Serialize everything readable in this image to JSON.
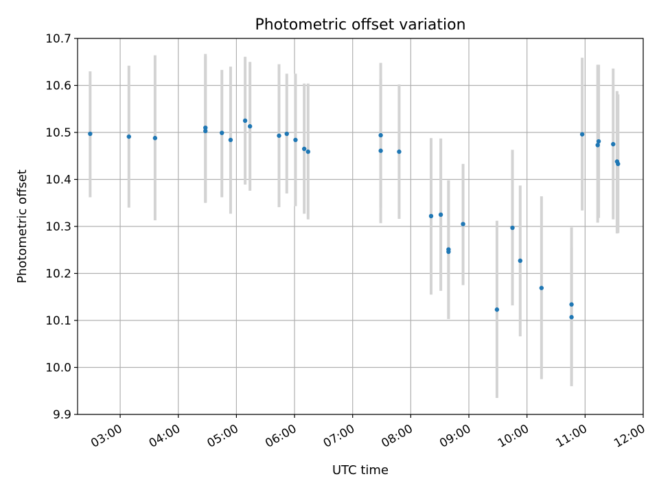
{
  "chart_data": {
    "type": "scatter",
    "title": "Photometric offset variation",
    "xlabel": "UTC time",
    "ylabel": "Photometric offset",
    "xlim": [
      "02:16",
      "12:00"
    ],
    "ylim": [
      9.9,
      10.7
    ],
    "x_ticks": [
      "03:00",
      "04:00",
      "05:00",
      "06:00",
      "07:00",
      "08:00",
      "09:00",
      "10:00",
      "11:00",
      "12:00"
    ],
    "y_ticks": [
      "9.9",
      "10.0",
      "10.1",
      "10.2",
      "10.3",
      "10.4",
      "10.5",
      "10.6",
      "10.7"
    ],
    "grid": true,
    "point_color": "#1f77b4",
    "errorbar_color": "#d3d3d3",
    "points": [
      {
        "x": "02:29",
        "y": 10.497,
        "err_low": 10.362,
        "err_high": 10.63
      },
      {
        "x": "03:09",
        "y": 10.491,
        "err_low": 10.34,
        "err_high": 10.642
      },
      {
        "x": "03:36",
        "y": 10.488,
        "err_low": 10.313,
        "err_high": 10.664
      },
      {
        "x": "04:28",
        "y": 10.51,
        "err_low": 10.35,
        "err_high": 10.667
      },
      {
        "x": "04:28",
        "y": 10.503,
        "err_low": 10.352,
        "err_high": 10.662
      },
      {
        "x": "04:45",
        "y": 10.499,
        "err_low": 10.362,
        "err_high": 10.633
      },
      {
        "x": "04:54",
        "y": 10.484,
        "err_low": 10.327,
        "err_high": 10.64
      },
      {
        "x": "05:09",
        "y": 10.525,
        "err_low": 10.389,
        "err_high": 10.661
      },
      {
        "x": "05:14",
        "y": 10.513,
        "err_low": 10.376,
        "err_high": 10.65
      },
      {
        "x": "05:44",
        "y": 10.493,
        "err_low": 10.341,
        "err_high": 10.645
      },
      {
        "x": "05:52",
        "y": 10.497,
        "err_low": 10.37,
        "err_high": 10.625
      },
      {
        "x": "06:01",
        "y": 10.484,
        "err_low": 10.343,
        "err_high": 10.625
      },
      {
        "x": "06:10",
        "y": 10.465,
        "err_low": 10.327,
        "err_high": 10.604
      },
      {
        "x": "06:14",
        "y": 10.459,
        "err_low": 10.315,
        "err_high": 10.604
      },
      {
        "x": "07:29",
        "y": 10.494,
        "err_low": 10.34,
        "err_high": 10.648
      },
      {
        "x": "07:29",
        "y": 10.461,
        "err_low": 10.307,
        "err_high": 10.614
      },
      {
        "x": "07:48",
        "y": 10.459,
        "err_low": 10.316,
        "err_high": 10.602
      },
      {
        "x": "08:21",
        "y": 10.322,
        "err_low": 10.155,
        "err_high": 10.488
      },
      {
        "x": "08:31",
        "y": 10.325,
        "err_low": 10.163,
        "err_high": 10.487
      },
      {
        "x": "08:39",
        "y": 10.251,
        "err_low": 10.103,
        "err_high": 10.398
      },
      {
        "x": "08:39",
        "y": 10.246,
        "err_low": 10.103,
        "err_high": 10.398
      },
      {
        "x": "08:54",
        "y": 10.305,
        "err_low": 10.175,
        "err_high": 10.433
      },
      {
        "x": "09:29",
        "y": 10.123,
        "err_low": 9.935,
        "err_high": 10.312
      },
      {
        "x": "09:45",
        "y": 10.297,
        "err_low": 10.132,
        "err_high": 10.463
      },
      {
        "x": "09:53",
        "y": 10.227,
        "err_low": 10.066,
        "err_high": 10.387
      },
      {
        "x": "10:15",
        "y": 10.169,
        "err_low": 9.975,
        "err_high": 10.364
      },
      {
        "x": "10:46",
        "y": 10.134,
        "err_low": 9.97,
        "err_high": 10.298
      },
      {
        "x": "10:46",
        "y": 10.107,
        "err_low": 9.96,
        "err_high": 10.255
      },
      {
        "x": "10:57",
        "y": 10.496,
        "err_low": 10.334,
        "err_high": 10.659
      },
      {
        "x": "11:13",
        "y": 10.473,
        "err_low": 10.308,
        "err_high": 10.644
      },
      {
        "x": "11:14",
        "y": 10.481,
        "err_low": 10.318,
        "err_high": 10.644
      },
      {
        "x": "11:29",
        "y": 10.475,
        "err_low": 10.315,
        "err_high": 10.636
      },
      {
        "x": "11:33",
        "y": 10.438,
        "err_low": 10.285,
        "err_high": 10.588
      },
      {
        "x": "11:34",
        "y": 10.433,
        "err_low": 10.286,
        "err_high": 10.581
      }
    ]
  }
}
